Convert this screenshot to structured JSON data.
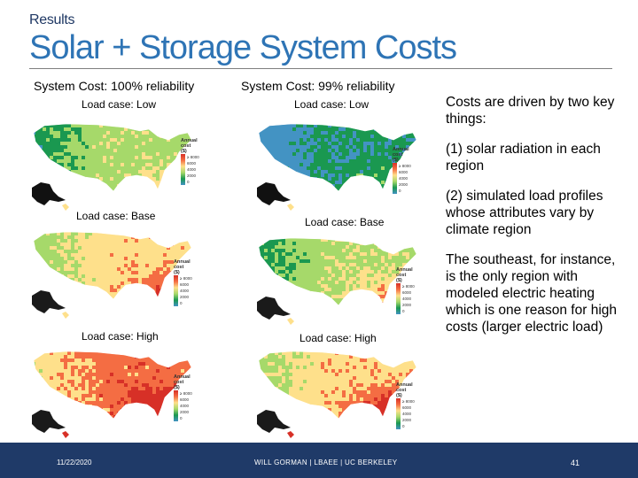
{
  "header": {
    "section": "Results",
    "title": "Solar + Storage System Costs"
  },
  "columns": [
    {
      "heading": "System Cost: 100% reliability"
    },
    {
      "heading": "System Cost: 99% reliability"
    }
  ],
  "load_cases": {
    "low": "Load case: Low",
    "base": "Load case: Base",
    "high": "Load case: High"
  },
  "legend": {
    "title_line1": "Annual",
    "title_line2": "cost",
    "title_line3": "($)",
    "ticks": [
      "≥ 8000",
      "6000",
      "4000",
      "2000",
      "0"
    ],
    "colors": [
      "#d73027",
      "#f46d43",
      "#fee08b",
      "#a6d96a",
      "#1a9850",
      "#4393c3"
    ]
  },
  "notes": [
    "Costs are driven by two key things:",
    "(1) solar radiation in each region",
    "(2) simulated load profiles whose attributes vary by climate region",
    "The southeast, for instance, is the only region with modeled electric heating which is one reason for high costs (larger electric load)"
  ],
  "footer": {
    "date": "11/22/2020",
    "center": "WILL GORMAN | LBAEE | UC BERKELEY",
    "page": "41"
  },
  "colors": {
    "title": "#2e74b5",
    "footer_bg": "#1f3a68"
  }
}
